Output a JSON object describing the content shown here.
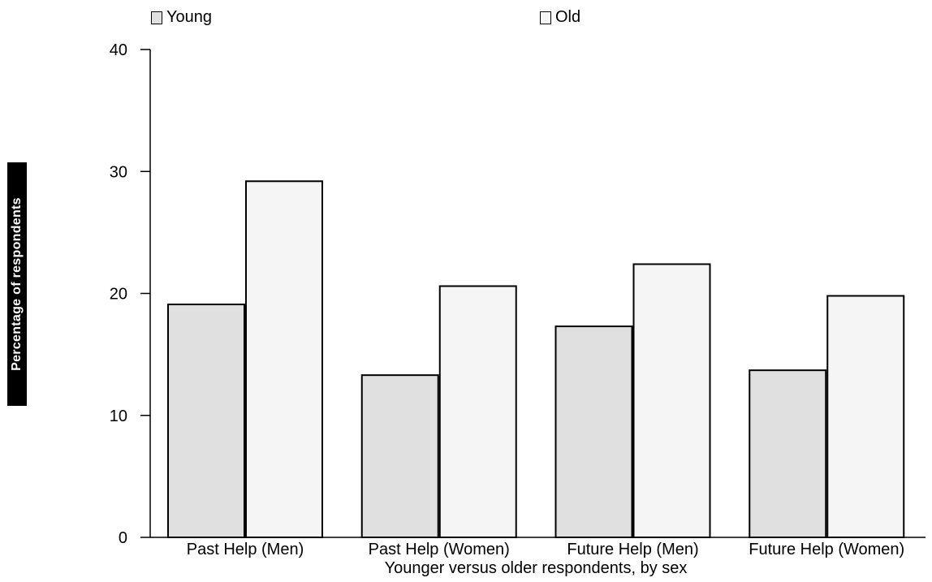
{
  "chart_data": {
    "type": "bar",
    "categories": [
      "Past Help (Men)",
      "Past Help (Women)",
      "Future Help (Men)",
      "Future Help (Women)"
    ],
    "series": [
      {
        "name": "Young",
        "values": [
          19.1,
          13.3,
          17.3,
          13.7
        ],
        "color": "#e0e0e0"
      },
      {
        "name": "Old",
        "values": [
          29.2,
          20.6,
          22.4,
          19.8
        ],
        "color": "#f5f5f5"
      }
    ],
    "title": "",
    "xlabel": "Younger versus older respondents, by sex",
    "ylabel": "Percentage of respondents",
    "ylim": [
      0,
      40
    ],
    "yticks": [
      0,
      10,
      20,
      30,
      40
    ],
    "grid": false,
    "legend_position": "top"
  }
}
